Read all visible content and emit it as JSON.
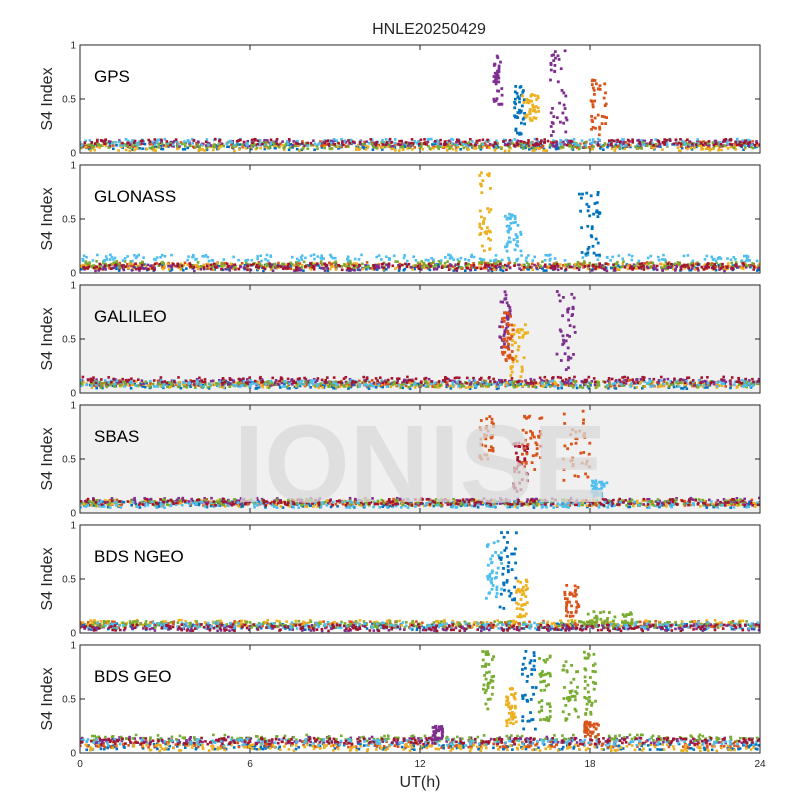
{
  "title": "HNLE20250429",
  "watermark": "IONISE",
  "chart_data": {
    "type": "scatter",
    "title": "HNLE20250429",
    "xlabel": "UT(h)",
    "ylabel": "S4 Index",
    "xlim": [
      0,
      24
    ],
    "ylim": [
      0,
      1
    ],
    "xticks": [
      0,
      6,
      12,
      18,
      24
    ],
    "yticks": [
      0,
      0.5,
      1
    ],
    "xtick_labels": [
      "0",
      "6",
      "12",
      "18",
      "24"
    ],
    "ytick_labels": [
      "0",
      "0.5",
      "1"
    ],
    "series_colors": [
      "#0072BD",
      "#D95319",
      "#EDB120",
      "#7E2F8E",
      "#77AC30",
      "#4DBEEE",
      "#A2142F"
    ],
    "panels": [
      {
        "label": "GPS",
        "background": "#ffffff",
        "base": [
          {
            "color": "#0072BD",
            "level": 0.06
          },
          {
            "color": "#D95319",
            "level": 0.08
          },
          {
            "color": "#EDB120",
            "level": 0.05
          },
          {
            "color": "#7E2F8E",
            "level": 0.09
          },
          {
            "color": "#77AC30",
            "level": 0.07
          },
          {
            "color": "#4DBEEE",
            "level": 0.1
          },
          {
            "color": "#A2142F",
            "level": 0.1
          }
        ],
        "bursts": [
          {
            "color": "#7E2F8E",
            "x": [
              14.6,
              14.9
            ],
            "y": [
              0.45,
              0.95
            ]
          },
          {
            "color": "#0072BD",
            "x": [
              15.3,
              15.7
            ],
            "y": [
              0.15,
              0.62
            ]
          },
          {
            "color": "#EDB120",
            "x": [
              15.6,
              16.2
            ],
            "y": [
              0.3,
              0.55
            ]
          },
          {
            "color": "#7E2F8E",
            "x": [
              16.6,
              17.2
            ],
            "y": [
              0.15,
              0.95
            ]
          },
          {
            "color": "#D95319",
            "x": [
              18.0,
              18.6
            ],
            "y": [
              0.15,
              0.7
            ]
          }
        ]
      },
      {
        "label": "GLONASS",
        "background": "#ffffff",
        "base": [
          {
            "color": "#0072BD",
            "level": 0.05
          },
          {
            "color": "#D95319",
            "level": 0.07
          },
          {
            "color": "#EDB120",
            "level": 0.06
          },
          {
            "color": "#7E2F8E",
            "level": 0.05
          },
          {
            "color": "#77AC30",
            "level": 0.08
          },
          {
            "color": "#4DBEEE",
            "level": 0.14
          },
          {
            "color": "#A2142F",
            "level": 0.06
          }
        ],
        "bursts": [
          {
            "color": "#EDB120",
            "x": [
              14.1,
              14.5
            ],
            "y": [
              0.2,
              0.95
            ]
          },
          {
            "color": "#4DBEEE",
            "x": [
              15.0,
              15.6
            ],
            "y": [
              0.2,
              0.55
            ]
          },
          {
            "color": "#0072BD",
            "x": [
              17.6,
              18.4
            ],
            "y": [
              0.15,
              0.75
            ]
          }
        ]
      },
      {
        "label": "GALILEO",
        "background": "#f0f0f0",
        "base": [
          {
            "color": "#0072BD",
            "level": 0.07
          },
          {
            "color": "#D95319",
            "level": 0.09
          },
          {
            "color": "#EDB120",
            "level": 0.08
          },
          {
            "color": "#7E2F8E",
            "level": 0.1
          },
          {
            "color": "#77AC30",
            "level": 0.08
          },
          {
            "color": "#4DBEEE",
            "level": 0.09
          },
          {
            "color": "#A2142F",
            "level": 0.12
          }
        ],
        "bursts": [
          {
            "color": "#7E2F8E",
            "x": [
              14.8,
              15.2
            ],
            "y": [
              0.4,
              0.95
            ]
          },
          {
            "color": "#EDB120",
            "x": [
              15.2,
              15.8
            ],
            "y": [
              0.15,
              0.65
            ]
          },
          {
            "color": "#D95319",
            "x": [
              14.9,
              15.3
            ],
            "y": [
              0.3,
              0.75
            ]
          },
          {
            "color": "#7E2F8E",
            "x": [
              16.8,
              17.5
            ],
            "y": [
              0.2,
              0.95
            ]
          }
        ]
      },
      {
        "label": "SBAS",
        "background": "#f0f0f0",
        "base": [
          {
            "color": "#0072BD",
            "level": 0.08
          },
          {
            "color": "#D95319",
            "level": 0.1
          },
          {
            "color": "#EDB120",
            "level": 0.09
          },
          {
            "color": "#7E2F8E",
            "level": 0.11
          },
          {
            "color": "#77AC30",
            "level": 0.1
          },
          {
            "color": "#4DBEEE",
            "level": 0.08
          },
          {
            "color": "#A2142F",
            "level": 0.1
          }
        ],
        "bursts": [
          {
            "color": "#D95319",
            "x": [
              14.1,
              14.6
            ],
            "y": [
              0.5,
              0.9
            ]
          },
          {
            "color": "#A2142F",
            "x": [
              15.3,
              15.8
            ],
            "y": [
              0.2,
              0.65
            ]
          },
          {
            "color": "#D95319",
            "x": [
              15.6,
              16.3
            ],
            "y": [
              0.4,
              0.9
            ]
          },
          {
            "color": "#D95319",
            "x": [
              17.0,
              18.0
            ],
            "y": [
              0.3,
              0.95
            ]
          },
          {
            "color": "#4DBEEE",
            "x": [
              18.0,
              18.6
            ],
            "y": [
              0.15,
              0.3
            ]
          }
        ]
      },
      {
        "label": "BDS NGEO",
        "background": "#ffffff",
        "base": [
          {
            "color": "#0072BD",
            "level": 0.06
          },
          {
            "color": "#D95319",
            "level": 0.08
          },
          {
            "color": "#EDB120",
            "level": 0.09
          },
          {
            "color": "#7E2F8E",
            "level": 0.05
          },
          {
            "color": "#77AC30",
            "level": 0.08
          },
          {
            "color": "#4DBEEE",
            "level": 0.07
          },
          {
            "color": "#A2142F",
            "level": 0.05
          }
        ],
        "bursts": [
          {
            "color": "#4DBEEE",
            "x": [
              14.3,
              14.9
            ],
            "y": [
              0.3,
              0.85
            ]
          },
          {
            "color": "#0072BD",
            "x": [
              14.8,
              15.4
            ],
            "y": [
              0.2,
              0.95
            ]
          },
          {
            "color": "#EDB120",
            "x": [
              15.4,
              15.8
            ],
            "y": [
              0.1,
              0.5
            ]
          },
          {
            "color": "#D95319",
            "x": [
              17.1,
              17.6
            ],
            "y": [
              0.15,
              0.45
            ]
          },
          {
            "color": "#77AC30",
            "x": [
              17.6,
              19.5
            ],
            "y": [
              0.08,
              0.2
            ]
          }
        ]
      },
      {
        "label": "BDS GEO",
        "background": "#ffffff",
        "base": [
          {
            "color": "#0072BD",
            "level": 0.06
          },
          {
            "color": "#D95319",
            "level": 0.08
          },
          {
            "color": "#EDB120",
            "level": 0.05
          },
          {
            "color": "#7E2F8E",
            "level": 0.12
          },
          {
            "color": "#77AC30",
            "level": 0.14
          },
          {
            "color": "#4DBEEE",
            "level": 0.1
          },
          {
            "color": "#A2142F",
            "level": 0.11
          }
        ],
        "bursts": [
          {
            "color": "#77AC30",
            "x": [
              14.2,
              14.6
            ],
            "y": [
              0.4,
              0.95
            ]
          },
          {
            "color": "#EDB120",
            "x": [
              15.0,
              15.4
            ],
            "y": [
              0.25,
              0.6
            ]
          },
          {
            "color": "#0072BD",
            "x": [
              15.6,
              16.1
            ],
            "y": [
              0.2,
              0.95
            ]
          },
          {
            "color": "#77AC30",
            "x": [
              16.2,
              16.6
            ],
            "y": [
              0.3,
              0.9
            ]
          },
          {
            "color": "#77AC30",
            "x": [
              17.0,
              17.6
            ],
            "y": [
              0.3,
              0.85
            ]
          },
          {
            "color": "#77AC30",
            "x": [
              17.8,
              18.2
            ],
            "y": [
              0.35,
              0.95
            ]
          },
          {
            "color": "#D95319",
            "x": [
              17.8,
              18.3
            ],
            "y": [
              0.15,
              0.3
            ]
          },
          {
            "color": "#7E2F8E",
            "x": [
              12.4,
              12.8
            ],
            "y": [
              0.12,
              0.25
            ]
          }
        ]
      }
    ]
  }
}
